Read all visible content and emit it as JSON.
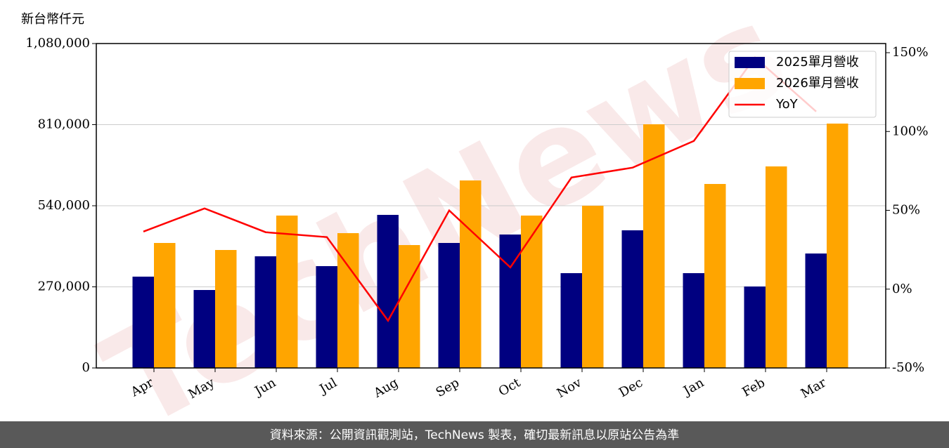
{
  "chart_data": {
    "type": "bar_line",
    "y_label": "新台幣仟元",
    "watermark": "TechNews",
    "footer": "資料來源：公開資訊觀測站，TechNews 製表，確切最新訊息以原站公告為準",
    "categories": [
      "Apr",
      "May",
      "Jun",
      "Jul",
      "Aug",
      "Sep",
      "Oct",
      "Nov",
      "Dec",
      "Jan",
      "Feb",
      "Mar"
    ],
    "series": [
      {
        "name": "2025單月營收",
        "type": "bar",
        "color": "#000080",
        "values": [
          304000,
          259500,
          371700,
          339000,
          509600,
          416100,
          444200,
          315600,
          458200,
          315600,
          271200,
          381000
        ]
      },
      {
        "name": "2026單月營收",
        "type": "bar",
        "color": "#ffa500",
        "values": [
          416100,
          392700,
          507300,
          448800,
          409100,
          624200,
          507300,
          540000,
          811200,
          612500,
          670900,
          813500
        ]
      },
      {
        "name": "YoY",
        "type": "line",
        "axis": "y2",
        "color": "#ff0000",
        "values": [
          36.5,
          51.2,
          36.1,
          33.0,
          -20.0,
          49.9,
          13.8,
          70.8,
          77.1,
          94.0,
          147.0,
          112.7
        ]
      }
    ],
    "ylim": [
      0,
      1080000
    ],
    "yticks": [
      0,
      {
        "value": 270000,
        "label": "270,000"
      },
      {
        "value": 540000,
        "label": "540,000"
      },
      {
        "value": 810000,
        "label": "810,000"
      },
      {
        "value": 1080000,
        "label": "1,080,000"
      }
    ],
    "y2lim": [
      -50,
      155.8
    ],
    "y2ticks": [
      {
        "value": -50,
        "label": "-50%"
      },
      {
        "value": 0,
        "label": "0%"
      },
      {
        "value": 50,
        "label": "50%"
      },
      {
        "value": 100,
        "label": "100%"
      },
      {
        "value": 150,
        "label": "150%"
      }
    ],
    "grid": true,
    "legend": "upper right"
  }
}
